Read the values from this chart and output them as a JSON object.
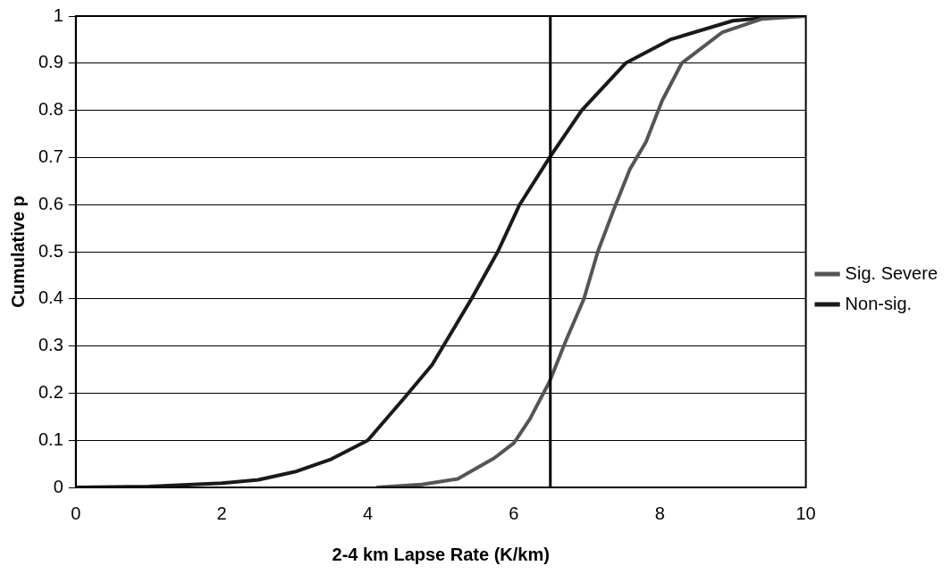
{
  "chart_data": {
    "type": "line",
    "xlabel": "2-4 km Lapse Rate (K/km)",
    "ylabel": "Cumulative p",
    "xlim": [
      0,
      10
    ],
    "xticks": [
      0,
      2,
      4,
      6,
      8,
      10
    ],
    "ylim": [
      0,
      1
    ],
    "yticks": [
      0,
      0.1,
      0.2,
      0.3,
      0.4,
      0.5,
      0.6,
      0.7,
      0.8,
      0.9,
      1
    ],
    "grid": "y",
    "legend": "right",
    "marker": "none",
    "line_style": "solid",
    "ref_lines": [
      {
        "axis": "x",
        "value": 6.5,
        "color": "#000000"
      }
    ],
    "series": [
      {
        "name": "Sig. Severe",
        "color": "#555555",
        "x": [
          4.12,
          4.74,
          5.23,
          5.73,
          6.0,
          6.22,
          6.49,
          6.71,
          6.96,
          7.15,
          7.37,
          7.59,
          7.81,
          8.03,
          8.3,
          8.85,
          9.4,
          10
        ],
        "values": [
          0,
          0.006,
          0.018,
          0.062,
          0.094,
          0.145,
          0.225,
          0.31,
          0.4,
          0.5,
          0.59,
          0.675,
          0.733,
          0.82,
          0.9,
          0.965,
          0.994,
          1
        ]
      },
      {
        "name": "Non-sig.",
        "color": "#1a1a1a",
        "x": [
          0,
          1,
          2,
          2.5,
          3,
          3.5,
          4,
          4.5,
          4.88,
          5.42,
          5.78,
          6.08,
          6.49,
          6.93,
          7.53,
          8.14,
          9,
          9.7,
          10
        ],
        "values": [
          0,
          0.002,
          0.009,
          0.016,
          0.033,
          0.06,
          0.1,
          0.19,
          0.26,
          0.4,
          0.5,
          0.6,
          0.7,
          0.8,
          0.9,
          0.95,
          0.99,
          1,
          1
        ]
      }
    ]
  }
}
